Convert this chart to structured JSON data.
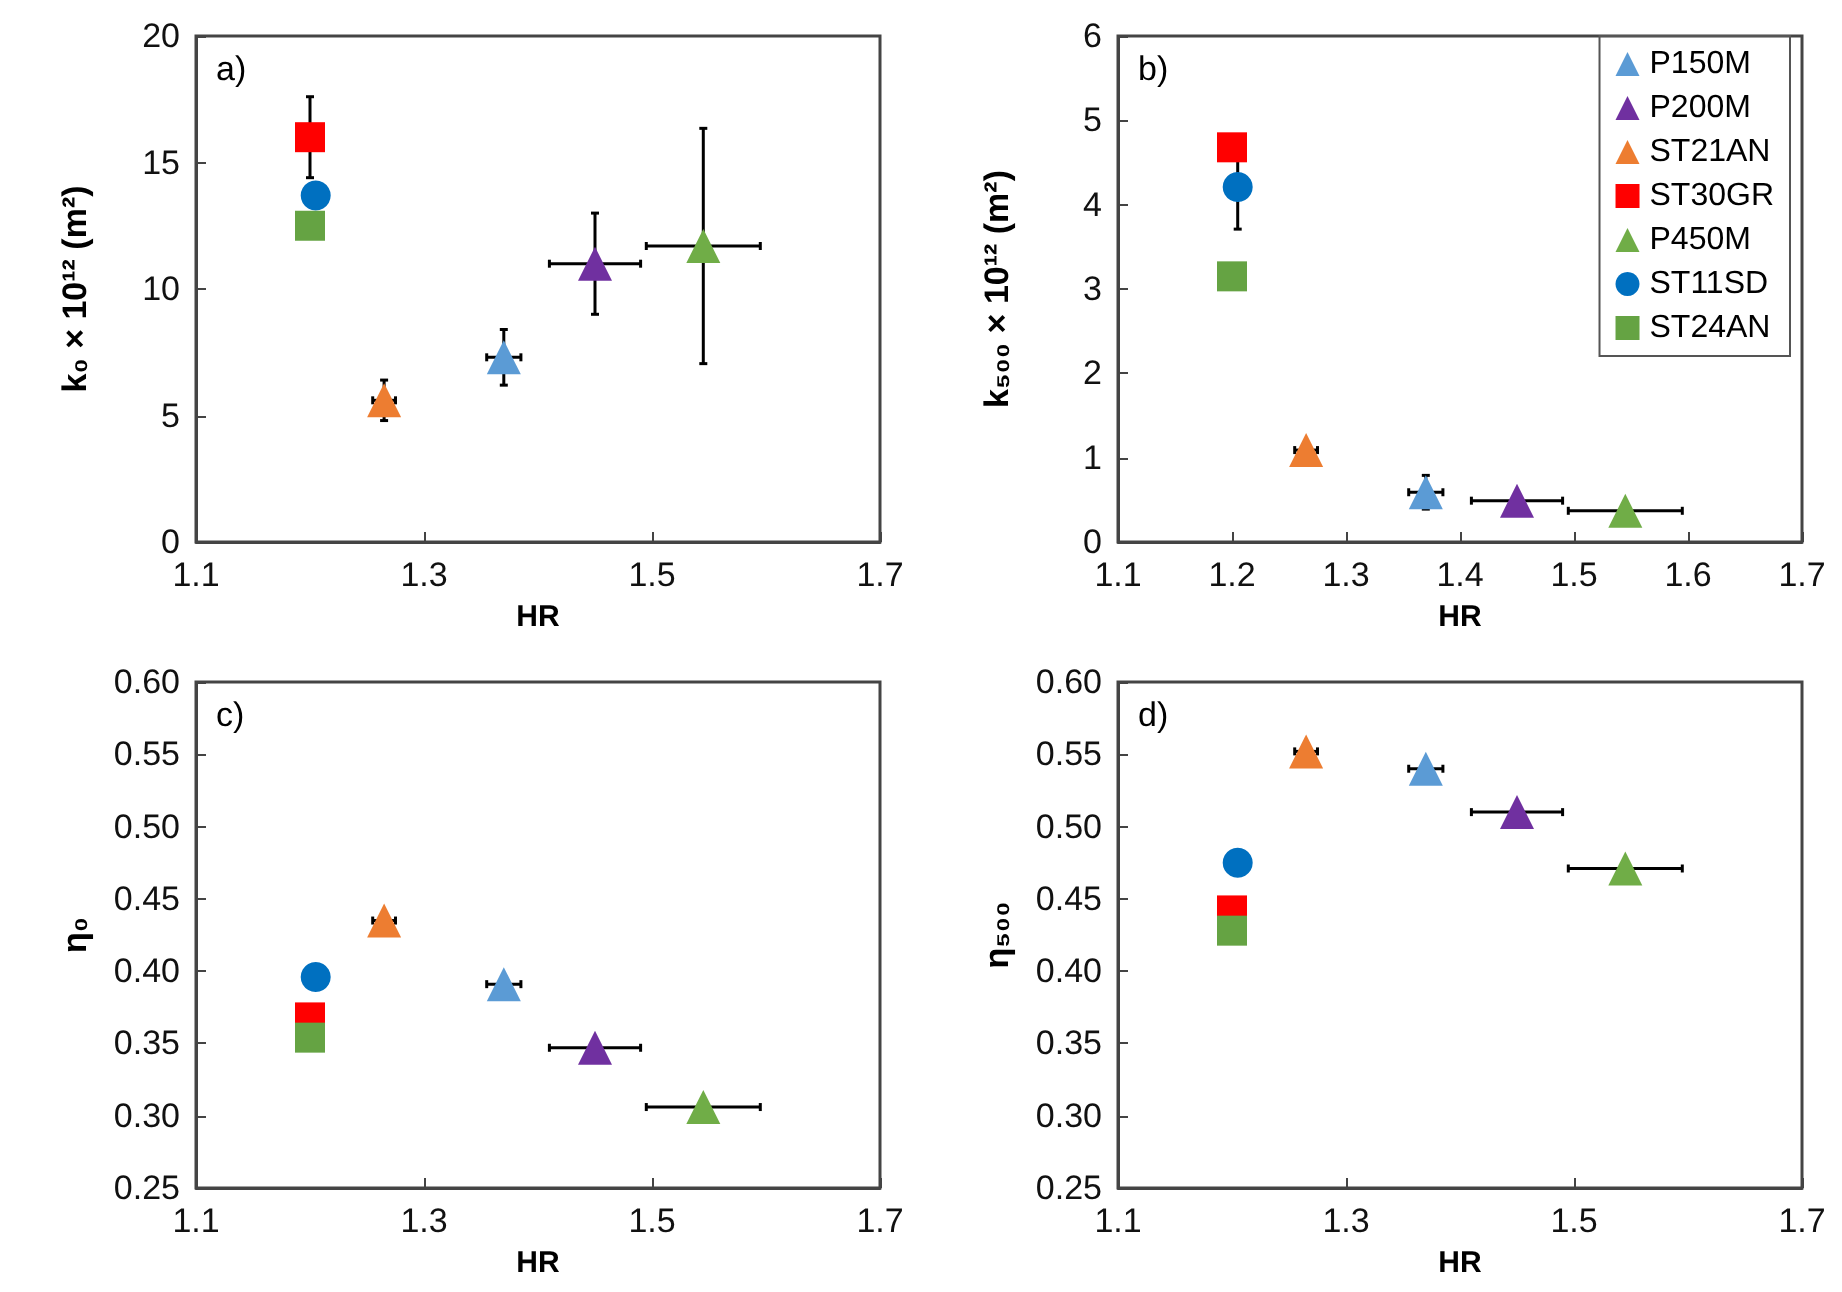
{
  "chart_data": [
    {
      "type": "scatter",
      "xlabel": "HR",
      "ylabel": "k₀ × 10¹² (m²)",
      "annotations": [
        "a)"
      ],
      "xlim": [
        1.1,
        1.7
      ],
      "xticks": [
        1.1,
        1.3,
        1.5,
        1.7
      ],
      "ylim": [
        0,
        20
      ],
      "yticks": [
        0,
        5,
        10,
        15,
        20
      ],
      "grid": false,
      "legend": false,
      "series": [
        {
          "color": "#5b9bd5",
          "marker": "triangle",
          "x": [
            1.37
          ],
          "values": [
            7.3
          ],
          "errors": [
            1.1
          ],
          "xerrors": [
            0.015
          ]
        },
        {
          "color": "#7030a0",
          "marker": "triangle",
          "x": [
            1.45
          ],
          "values": [
            11.0
          ],
          "errors": [
            2.0
          ],
          "xerrors": [
            0.04
          ]
        },
        {
          "color": "#ed7d31",
          "marker": "triangle",
          "x": [
            1.265
          ],
          "values": [
            5.6
          ],
          "errors": [
            0.8
          ],
          "xerrors": [
            0.01
          ]
        },
        {
          "color": "#ff0000",
          "marker": "square",
          "x": [
            1.2
          ],
          "values": [
            16.0
          ],
          "errors": [
            1.6
          ]
        },
        {
          "color": "#70ad47",
          "marker": "triangle",
          "x": [
            1.545
          ],
          "values": [
            11.7
          ],
          "errors": [
            4.65
          ],
          "xerrors": [
            0.05
          ]
        },
        {
          "color": "#0070c0",
          "marker": "circle",
          "x": [
            1.205
          ],
          "values": [
            13.7
          ]
        },
        {
          "color": "#65a343",
          "marker": "square",
          "x": [
            1.2
          ],
          "values": [
            12.5
          ]
        }
      ]
    },
    {
      "type": "scatter",
      "xlabel": "HR",
      "ylabel": "k₅₀₀ × 10¹² (m²)",
      "annotations": [
        "b)"
      ],
      "xlim": [
        1.1,
        1.7
      ],
      "xticks": [
        1.1,
        1.2,
        1.3,
        1.4,
        1.5,
        1.6,
        1.7
      ],
      "ylim": [
        0,
        6
      ],
      "yticks": [
        0,
        1,
        2,
        3,
        4,
        5,
        6
      ],
      "grid": false,
      "legend": "top right",
      "series": [
        {
          "name": "P150M",
          "color": "#5b9bd5",
          "marker": "triangle",
          "x": [
            1.37
          ],
          "values": [
            0.59
          ],
          "errors": [
            0.2
          ],
          "xerrors": [
            0.015
          ]
        },
        {
          "name": "P200M",
          "color": "#7030a0",
          "marker": "triangle",
          "x": [
            1.45
          ],
          "values": [
            0.49
          ],
          "xerrors": [
            0.04
          ]
        },
        {
          "name": "ST21AN",
          "color": "#ed7d31",
          "marker": "triangle",
          "x": [
            1.265
          ],
          "values": [
            1.09
          ],
          "xerrors": [
            0.01
          ]
        },
        {
          "name": "ST30GR",
          "color": "#ff0000",
          "marker": "square",
          "x": [
            1.2
          ],
          "values": [
            4.68
          ]
        },
        {
          "name": "P450M",
          "color": "#70ad47",
          "marker": "triangle",
          "x": [
            1.545
          ],
          "values": [
            0.37
          ],
          "xerrors": [
            0.05
          ]
        },
        {
          "name": "ST11SD",
          "color": "#0070c0",
          "marker": "circle",
          "x": [
            1.205
          ],
          "values": [
            4.21
          ],
          "errors": [
            0.5
          ]
        },
        {
          "name": "ST24AN",
          "color": "#65a343",
          "marker": "square",
          "x": [
            1.2
          ],
          "values": [
            3.15
          ]
        }
      ]
    },
    {
      "type": "scatter",
      "xlabel": "HR",
      "ylabel": "η₀",
      "annotations": [
        "c)"
      ],
      "xlim": [
        1.1,
        1.7
      ],
      "xticks": [
        1.1,
        1.3,
        1.5,
        1.7
      ],
      "ylim": [
        0.25,
        0.6
      ],
      "yticks": [
        {
          "value": 0.25,
          "label": "0.25"
        },
        {
          "value": 0.3,
          "label": "0.30"
        },
        {
          "value": 0.35,
          "label": "0.35"
        },
        {
          "value": 0.4,
          "label": "0.40"
        },
        {
          "value": 0.45,
          "label": "0.45"
        },
        {
          "value": 0.5,
          "label": "0.50"
        },
        {
          "value": 0.55,
          "label": "0.55"
        },
        {
          "value": 0.6,
          "label": "0.60"
        }
      ],
      "grid": false,
      "legend": false,
      "series": [
        {
          "color": "#5b9bd5",
          "marker": "triangle",
          "x": [
            1.37
          ],
          "values": [
            0.391
          ],
          "xerrors": [
            0.015
          ]
        },
        {
          "color": "#7030a0",
          "marker": "triangle",
          "x": [
            1.45
          ],
          "values": [
            0.347
          ],
          "xerrors": [
            0.04
          ]
        },
        {
          "color": "#ed7d31",
          "marker": "triangle",
          "x": [
            1.265
          ],
          "values": [
            0.435
          ],
          "xerrors": [
            0.01
          ]
        },
        {
          "color": "#ff0000",
          "marker": "square",
          "x": [
            1.2
          ],
          "values": [
            0.368
          ]
        },
        {
          "color": "#70ad47",
          "marker": "triangle",
          "x": [
            1.545
          ],
          "values": [
            0.306
          ],
          "xerrors": [
            0.05
          ]
        },
        {
          "color": "#0070c0",
          "marker": "circle",
          "x": [
            1.205
          ],
          "values": [
            0.396
          ]
        },
        {
          "color": "#65a343",
          "marker": "square",
          "x": [
            1.2
          ],
          "values": [
            0.354
          ]
        }
      ]
    },
    {
      "type": "scatter",
      "xlabel": "HR",
      "ylabel": "η₅₀₀",
      "annotations": [
        "d)"
      ],
      "xlim": [
        1.1,
        1.7
      ],
      "xticks": [
        1.1,
        1.3,
        1.5,
        1.7
      ],
      "ylim": [
        0.25,
        0.6
      ],
      "yticks": [
        {
          "value": 0.25,
          "label": "0.25"
        },
        {
          "value": 0.3,
          "label": "0.30"
        },
        {
          "value": 0.35,
          "label": "0.35"
        },
        {
          "value": 0.4,
          "label": "0.40"
        },
        {
          "value": 0.45,
          "label": "0.45"
        },
        {
          "value": 0.5,
          "label": "0.50"
        },
        {
          "value": 0.55,
          "label": "0.55"
        },
        {
          "value": 0.6,
          "label": "0.60"
        }
      ],
      "grid": false,
      "legend": false,
      "series": [
        {
          "color": "#5b9bd5",
          "marker": "triangle",
          "x": [
            1.37
          ],
          "values": [
            0.54
          ],
          "xerrors": [
            0.015
          ]
        },
        {
          "color": "#7030a0",
          "marker": "triangle",
          "x": [
            1.45
          ],
          "values": [
            0.51
          ],
          "xerrors": [
            0.04
          ]
        },
        {
          "color": "#ed7d31",
          "marker": "triangle",
          "x": [
            1.265
          ],
          "values": [
            0.552
          ],
          "xerrors": [
            0.01
          ]
        },
        {
          "color": "#ff0000",
          "marker": "square",
          "x": [
            1.2
          ],
          "values": [
            0.442
          ]
        },
        {
          "color": "#70ad47",
          "marker": "triangle",
          "x": [
            1.545
          ],
          "values": [
            0.471
          ],
          "xerrors": [
            0.05
          ]
        },
        {
          "color": "#0070c0",
          "marker": "circle",
          "x": [
            1.205
          ],
          "values": [
            0.475
          ]
        },
        {
          "color": "#65a343",
          "marker": "square",
          "x": [
            1.2
          ],
          "values": [
            0.428
          ]
        }
      ]
    }
  ]
}
